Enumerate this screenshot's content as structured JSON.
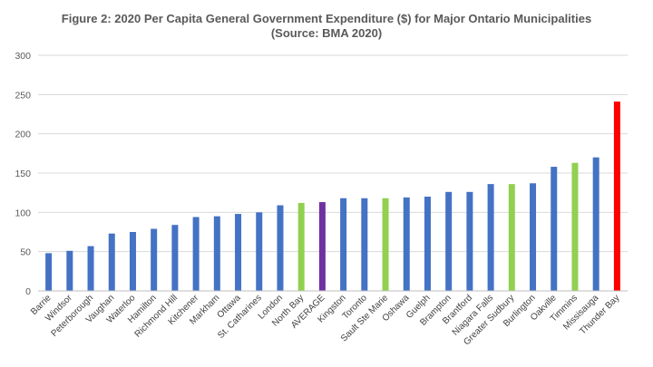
{
  "chart_data": {
    "type": "bar",
    "title_line1": "Figure 2: 2020 Per Capita General Government Expenditure ($) for Major Ontario Municipalities",
    "title_line2": "(Source: BMA 2020)",
    "ylim": [
      0,
      300
    ],
    "yticks": [
      0,
      50,
      100,
      150,
      200,
      250,
      300
    ],
    "grid": true,
    "legend": "none",
    "categories": [
      "Barrie",
      "Windsor",
      "Peterborough",
      "Vaughan",
      "Waterloo",
      "Hamilton",
      "Richmond Hill",
      "Kitchener",
      "Markham",
      "Ottawa",
      "St. Catharines",
      "London",
      "North Bay",
      "AVERAGE",
      "Kingston",
      "Toronto",
      "Sault Ste Marie",
      "Oshawa",
      "Guelph",
      "Brampton",
      "Brantford",
      "Niagara Falls",
      "Greater Sudbury",
      "Burlington",
      "Oakville",
      "Timmins",
      "Missisauga",
      "Thunder Bay"
    ],
    "values": [
      48,
      51,
      57,
      73,
      75,
      79,
      84,
      94,
      95,
      98,
      100,
      109,
      112,
      113,
      118,
      118,
      118,
      119,
      120,
      126,
      126,
      136,
      136,
      137,
      158,
      163,
      170,
      241
    ],
    "bar_colors": [
      "#4472C4",
      "#4472C4",
      "#4472C4",
      "#4472C4",
      "#4472C4",
      "#4472C4",
      "#4472C4",
      "#4472C4",
      "#4472C4",
      "#4472C4",
      "#4472C4",
      "#4472C4",
      "#92D050",
      "#7030A0",
      "#4472C4",
      "#4472C4",
      "#92D050",
      "#4472C4",
      "#4472C4",
      "#4472C4",
      "#4472C4",
      "#4472C4",
      "#92D050",
      "#4472C4",
      "#4472C4",
      "#92D050",
      "#4472C4",
      "#FF0000"
    ],
    "grid_color": "#d9d9d9"
  }
}
